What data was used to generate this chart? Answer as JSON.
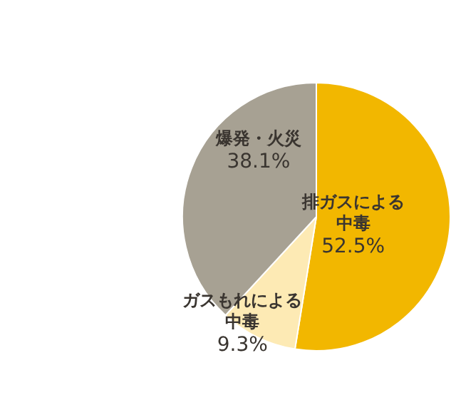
{
  "chart_data": {
    "type": "pie",
    "categories": [
      "排ガスによる中毒",
      "ガスもれによる中毒",
      "爆発・火災"
    ],
    "values": [
      52.5,
      9.3,
      38.1
    ],
    "value_labels": [
      "52.5%",
      "9.3%",
      "38.1%"
    ],
    "colors": [
      "#f2b700",
      "#fdeab4",
      "#a7a193"
    ],
    "legend": false
  }
}
